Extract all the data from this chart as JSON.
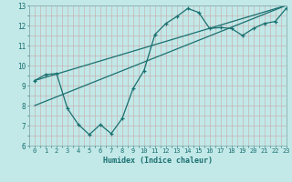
{
  "xlabel": "Humidex (Indice chaleur)",
  "xlim": [
    -0.5,
    23
  ],
  "ylim": [
    6,
    13
  ],
  "xticks": [
    0,
    1,
    2,
    3,
    4,
    5,
    6,
    7,
    8,
    9,
    10,
    11,
    12,
    13,
    14,
    15,
    16,
    17,
    18,
    19,
    20,
    21,
    22,
    23
  ],
  "yticks": [
    6,
    7,
    8,
    9,
    10,
    11,
    12,
    13
  ],
  "bg_color": "#c2e8e8",
  "grid_minor_color": "#d8f0f0",
  "grid_major_color": "#b0d8d8",
  "line_color": "#1a7070",
  "line1_x": [
    0,
    1,
    2,
    3,
    4,
    5,
    6,
    7,
    8,
    9,
    10,
    11,
    12,
    13,
    14,
    15,
    16,
    17,
    18,
    19,
    20,
    21,
    22,
    23
  ],
  "line1_y": [
    9.25,
    9.55,
    9.6,
    7.85,
    7.05,
    6.55,
    7.05,
    6.6,
    7.35,
    8.85,
    9.75,
    11.55,
    12.1,
    12.45,
    12.85,
    12.65,
    11.85,
    11.9,
    11.85,
    11.5,
    11.85,
    12.1,
    12.2,
    12.85
  ],
  "line2_x": [
    0,
    23
  ],
  "line2_y": [
    8.0,
    13.0
  ],
  "line3_x": [
    0,
    23
  ],
  "line3_y": [
    9.25,
    13.0
  ]
}
